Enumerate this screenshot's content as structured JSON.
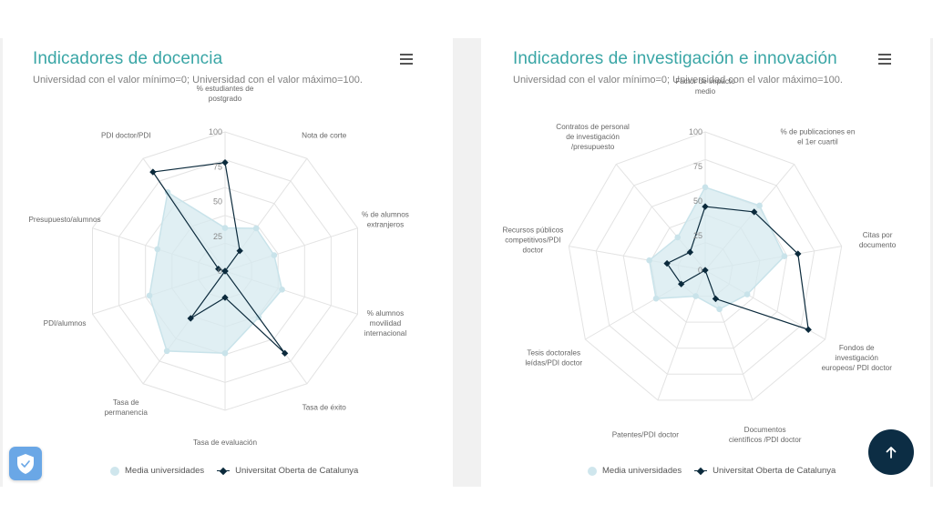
{
  "charts_common": {
    "subtitle": "Universidad con el valor mínimo=0; Universidad con el valor máximo=100.",
    "ticks": [
      "0",
      "25",
      "50",
      "75",
      "100"
    ]
  },
  "left_card": {
    "title": "Indicadores de docencia",
    "subtitle": "Universidad con el valor mínimo=0; Universidad con el valor máximo=100.",
    "legend": {
      "series1": "Media universidades",
      "series2": "Universitat Oberta de Catalunya"
    }
  },
  "right_card": {
    "title": "Indicadores de investigación e innovación",
    "subtitle": "Universidad con el valor mínimo=0; Universidad con el valor máximo=100.",
    "legend": {
      "series1": "Media universidades",
      "series2": "Universitat Oberta de Catalunya"
    }
  },
  "colors": {
    "title": "#3aa6a6",
    "media_fill": "#d5e9ef",
    "media_marker": "#c9e3ea",
    "uoc_line": "#0b2a3c",
    "grid": "#e3e3e3",
    "scroll_top_bg": "#0c2d44",
    "shield_bg": "#6aa7e6"
  },
  "icons": {
    "menu": "hamburger-menu-icon",
    "shield": "shield-check-icon",
    "scroll_top": "arrow-up-icon"
  },
  "chart_data": [
    {
      "type": "radar",
      "title": "Indicadores de docencia",
      "subtitle": "Universidad con el valor mínimo=0; Universidad con el valor máximo=100.",
      "range": [
        0,
        100
      ],
      "ticks": [
        0,
        25,
        50,
        75,
        100
      ],
      "legend_position": "bottom",
      "categories": [
        [
          "% estudiantes de",
          "postgrado"
        ],
        [
          "Nota de corte"
        ],
        [
          "% de alumnos",
          "extranjeros"
        ],
        [
          "% alumnos",
          "movilidad",
          "internacional"
        ],
        [
          "Tasa de éxito"
        ],
        [
          "Tasa de evaluación"
        ],
        [
          "Tasa de",
          "permanencia"
        ],
        [
          "PDI/alumnos"
        ],
        [
          "Presupuesto/alumnos"
        ],
        [
          "PDI doctor/PDI"
        ]
      ],
      "series": [
        {
          "name": "Media universidades",
          "values": [
            31,
            38,
            37,
            43,
            41,
            59,
            71,
            57,
            51,
            70
          ]
        },
        {
          "name": "Universitat Oberta de Catalunya",
          "values": [
            78,
            18,
            0,
            0,
            73,
            19,
            42,
            0,
            5,
            88
          ]
        }
      ]
    },
    {
      "type": "radar",
      "title": "Indicadores de investigación e innovación",
      "subtitle": "Universidad con el valor mínimo=0; Universidad con el valor máximo=100.",
      "range": [
        0,
        100
      ],
      "ticks": [
        0,
        25,
        50,
        75,
        100
      ],
      "legend_position": "bottom",
      "categories": [
        [
          "Factor de impacto",
          "medio"
        ],
        [
          "% de publicaciones en",
          "el 1er cuartil"
        ],
        [
          "Citas por",
          "documento"
        ],
        [
          "Fondos de",
          "investigación",
          "europeos/ PDI doctor"
        ],
        [
          "Documentos",
          "científicos /PDI doctor"
        ],
        [
          "Patentes/PDI doctor"
        ],
        [
          "Tesis doctorales",
          "leídas/PDI doctor"
        ],
        [
          "Recursos públicos",
          "competitivos/PDI",
          "doctor"
        ],
        [
          "Contratos de personal",
          "de investigación",
          "/presupuesto"
        ]
      ],
      "series": [
        {
          "name": "Media universidades",
          "values": [
            60,
            61,
            58,
            35,
            30,
            20,
            41,
            41,
            31
          ]
        },
        {
          "name": "Universitat Oberta de Catalunya",
          "values": [
            46,
            55,
            68,
            86,
            22,
            0,
            20,
            28,
            17
          ]
        }
      ]
    }
  ]
}
